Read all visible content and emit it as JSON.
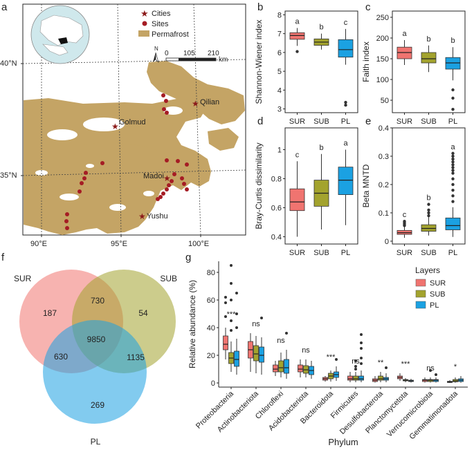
{
  "panels": {
    "a": {
      "letter": "a",
      "lat_labels": [
        "40°N",
        "35°N"
      ],
      "lon_labels": [
        "90°E",
        "95°E",
        "100°E"
      ],
      "legend": [
        {
          "label": "Cities",
          "symbol": "star",
          "color": "#8b1a1a"
        },
        {
          "label": "Sites",
          "symbol": "dot",
          "color": "#8b1a1a"
        },
        {
          "label": "Permafrost",
          "symbol": "rect",
          "color": "#c4a465"
        }
      ],
      "north": "N",
      "scale_labels": [
        "0",
        "105",
        "210"
      ],
      "scale_unit": "km",
      "cities": [
        "Qilian",
        "Golmud",
        "Madoi",
        "Yushu"
      ]
    },
    "b": {
      "letter": "b"
    },
    "c": {
      "letter": "c"
    },
    "d": {
      "letter": "d"
    },
    "e": {
      "letter": "e"
    },
    "f": {
      "letter": "f"
    },
    "g": {
      "letter": "g"
    }
  },
  "colors": {
    "SUR": "#f07470",
    "SUB": "#a3a32e",
    "PL": "#1ba1e2",
    "permafrost": "#c4a465",
    "site": "#a51c24"
  },
  "chart_data": [
    {
      "id": "b",
      "type": "box",
      "ylabel": "Shannon-Wiener index",
      "categories": [
        "SUR",
        "SUB",
        "PL"
      ],
      "ylim": [
        2.8,
        8.2
      ],
      "yticks": [
        3,
        4,
        5,
        6,
        7,
        8
      ],
      "letters": [
        "a",
        "b",
        "c"
      ],
      "boxes": [
        {
          "q1": 6.7,
          "median": 6.9,
          "q3": 7.05,
          "whislo": 6.35,
          "whishi": 7.3,
          "fliers": [
            6.05
          ]
        },
        {
          "q1": 6.38,
          "median": 6.55,
          "q3": 6.72,
          "whislo": 6.15,
          "whishi": 7.0,
          "fliers": []
        },
        {
          "q1": 5.75,
          "median": 6.15,
          "q3": 6.68,
          "whislo": 5.35,
          "whishi": 7.25,
          "fliers": [
            3.35,
            3.2
          ]
        }
      ]
    },
    {
      "id": "c",
      "type": "box",
      "ylabel": "Faith index",
      "categories": [
        "SUR",
        "SUB",
        "PL"
      ],
      "ylim": [
        20,
        265
      ],
      "yticks": [
        50,
        100,
        150,
        200,
        250
      ],
      "letters": [
        "a",
        "b",
        "b"
      ],
      "boxes": [
        {
          "q1": 150,
          "median": 165,
          "q3": 178,
          "whislo": 135,
          "whishi": 195,
          "fliers": []
        },
        {
          "q1": 140,
          "median": 150,
          "q3": 165,
          "whislo": 118,
          "whishi": 182,
          "fliers": []
        },
        {
          "q1": 125,
          "median": 140,
          "q3": 153,
          "whislo": 98,
          "whishi": 178,
          "fliers": [
            75,
            55,
            28
          ]
        }
      ]
    },
    {
      "id": "d",
      "type": "box",
      "ylabel": "Bray-Curtis dissimilarity",
      "categories": [
        "SUR",
        "SUB",
        "PL"
      ],
      "ylim": [
        0.35,
        1.15
      ],
      "yticks": [
        0.4,
        0.6,
        0.8,
        1.0
      ],
      "letters": [
        "c",
        "b",
        "a"
      ],
      "boxes": [
        {
          "q1": 0.58,
          "median": 0.64,
          "q3": 0.73,
          "whislo": 0.4,
          "whishi": 0.92,
          "fliers": []
        },
        {
          "q1": 0.61,
          "median": 0.7,
          "q3": 0.79,
          "whislo": 0.45,
          "whishi": 0.97,
          "fliers": []
        },
        {
          "q1": 0.69,
          "median": 0.79,
          "q3": 0.88,
          "whislo": 0.48,
          "whishi": 1.0,
          "fliers": []
        }
      ]
    },
    {
      "id": "e",
      "type": "box",
      "ylabel": "Beta MNTD",
      "categories": [
        "SUR",
        "SUB",
        "PL"
      ],
      "ylim": [
        -0.01,
        0.4
      ],
      "yticks": [
        0.0,
        0.1,
        0.2,
        0.3,
        0.4
      ],
      "letters": [
        "c",
        "b",
        "a"
      ],
      "boxes": [
        {
          "q1": 0.024,
          "median": 0.03,
          "q3": 0.038,
          "whislo": 0.012,
          "whishi": 0.05,
          "fliers": [
            0.055,
            0.06,
            0.065,
            0.07
          ]
        },
        {
          "q1": 0.035,
          "median": 0.045,
          "q3": 0.058,
          "whislo": 0.02,
          "whishi": 0.085,
          "fliers": [
            0.09,
            0.1,
            0.11,
            0.13
          ]
        },
        {
          "q1": 0.04,
          "median": 0.055,
          "q3": 0.082,
          "whislo": 0.015,
          "whishi": 0.12,
          "fliers": [
            0.14,
            0.16,
            0.18,
            0.2,
            0.22,
            0.24,
            0.25,
            0.26,
            0.27,
            0.28,
            0.29,
            0.3,
            0.31
          ]
        }
      ]
    },
    {
      "id": "f",
      "type": "venn",
      "sets": [
        "SUR",
        "SUB",
        "PL"
      ],
      "regions": {
        "SUR_only": "187",
        "SUB_only": "54",
        "PL_only": "269",
        "SUR_SUB": "730",
        "SUR_PL": "630",
        "SUB_PL": "1135",
        "all": "9850"
      }
    },
    {
      "id": "g",
      "type": "grouped-box",
      "ylabel": "Relative abundance (%)",
      "xlabel": "Phylum",
      "ylim": [
        -3,
        88
      ],
      "yticks": [
        0,
        20,
        40,
        60,
        80
      ],
      "legend_title": "Layers",
      "series": [
        "SUR",
        "SUB",
        "PL"
      ],
      "categories": [
        "Proteobacteria",
        "Actinobacteriota",
        "Chloroflexi",
        "Acidobacteriota",
        "Bacteroidota",
        "Firmicutes",
        "Desulfobacterota",
        "Planctomycetota",
        "Verrucomicrobiota",
        "Gemmatimonadota"
      ],
      "significance": [
        "***",
        "ns",
        "ns",
        "ns",
        "***",
        "ns",
        "**",
        "***",
        "ns",
        "*"
      ],
      "boxes": [
        [
          {
            "q1": 24,
            "median": 28,
            "q3": 34,
            "whislo": 17,
            "whishi": 40,
            "fliers": [
              48,
              58,
              62
            ]
          },
          {
            "q1": 14,
            "median": 18,
            "q3": 22,
            "whislo": 8,
            "whishi": 30,
            "fliers": [
              38,
              45,
              60,
              72,
              85
            ]
          },
          {
            "q1": 12,
            "median": 17,
            "q3": 23,
            "whislo": 6,
            "whishi": 32,
            "fliers": [
              40,
              50,
              65
            ]
          }
        ],
        [
          {
            "q1": 18,
            "median": 24,
            "q3": 30,
            "whislo": 8,
            "whishi": 36,
            "fliers": []
          },
          {
            "q1": 16,
            "median": 21,
            "q3": 27,
            "whislo": 7,
            "whishi": 34,
            "fliers": []
          },
          {
            "q1": 15,
            "median": 20,
            "q3": 26,
            "whislo": 6,
            "whishi": 33,
            "fliers": [
              47
            ]
          }
        ],
        [
          {
            "q1": 8,
            "median": 10,
            "q3": 13,
            "whislo": 5,
            "whishi": 16,
            "fliers": []
          },
          {
            "q1": 8,
            "median": 11,
            "q3": 16,
            "whislo": 4,
            "whishi": 22,
            "fliers": []
          },
          {
            "q1": 7,
            "median": 11,
            "q3": 17,
            "whislo": 3,
            "whishi": 24,
            "fliers": [
              36
            ]
          }
        ],
        [
          {
            "q1": 8,
            "median": 10,
            "q3": 13,
            "whislo": 4,
            "whishi": 17,
            "fliers": []
          },
          {
            "q1": 7,
            "median": 9.5,
            "q3": 12.5,
            "whislo": 4,
            "whishi": 17,
            "fliers": []
          },
          {
            "q1": 6,
            "median": 9,
            "q3": 12,
            "whislo": 3,
            "whishi": 16,
            "fliers": []
          }
        ],
        [
          {
            "q1": 2,
            "median": 3,
            "q3": 4,
            "whislo": 1,
            "whishi": 5,
            "fliers": []
          },
          {
            "q1": 3,
            "median": 5,
            "q3": 7,
            "whislo": 1,
            "whishi": 9,
            "fliers": []
          },
          {
            "q1": 4,
            "median": 6,
            "q3": 8,
            "whislo": 1.5,
            "whishi": 12,
            "fliers": [
              17
            ]
          }
        ],
        [
          {
            "q1": 2,
            "median": 3,
            "q3": 5,
            "whislo": 0.5,
            "whishi": 8,
            "fliers": []
          },
          {
            "q1": 2,
            "median": 3,
            "q3": 5,
            "whislo": 0.5,
            "whishi": 8,
            "fliers": [
              10,
              12,
              16
            ]
          },
          {
            "q1": 2,
            "median": 3,
            "q3": 5,
            "whislo": 0.5,
            "whishi": 9,
            "fliers": [
              14,
              18,
              25,
              29,
              35
            ]
          }
        ],
        [
          {
            "q1": 1,
            "median": 2,
            "q3": 3,
            "whislo": 0.3,
            "whishi": 5,
            "fliers": []
          },
          {
            "q1": 2,
            "median": 3,
            "q3": 5,
            "whislo": 0.5,
            "whishi": 8,
            "fliers": []
          },
          {
            "q1": 2,
            "median": 3,
            "q3": 4,
            "whislo": 0.5,
            "whishi": 7,
            "fliers": [
              11
            ]
          }
        ],
        [
          {
            "q1": 3,
            "median": 4,
            "q3": 5,
            "whislo": 1.5,
            "whishi": 7,
            "fliers": []
          },
          {
            "q1": 1.5,
            "median": 2,
            "q3": 2.5,
            "whislo": 0.5,
            "whishi": 3.5,
            "fliers": []
          },
          {
            "q1": 1,
            "median": 1.5,
            "q3": 2,
            "whislo": 0.3,
            "whishi": 3,
            "fliers": []
          }
        ],
        [
          {
            "q1": 1,
            "median": 2,
            "q3": 2.5,
            "whislo": 0.3,
            "whishi": 4,
            "fliers": []
          },
          {
            "q1": 1,
            "median": 2,
            "q3": 2.5,
            "whislo": 0.3,
            "whishi": 4,
            "fliers": [
              9
            ]
          },
          {
            "q1": 1,
            "median": 2,
            "q3": 2.5,
            "whislo": 0.3,
            "whishi": 4,
            "fliers": [
              6
            ]
          }
        ],
        [
          {
            "q1": 0.3,
            "median": 0.7,
            "q3": 1.2,
            "whislo": 0,
            "whishi": 2,
            "fliers": []
          },
          {
            "q1": 0.8,
            "median": 1.5,
            "q3": 2.5,
            "whislo": 0.2,
            "whishi": 4,
            "fliers": []
          },
          {
            "q1": 1,
            "median": 2,
            "q3": 3,
            "whislo": 0.2,
            "whishi": 5,
            "fliers": []
          }
        ]
      ]
    }
  ]
}
